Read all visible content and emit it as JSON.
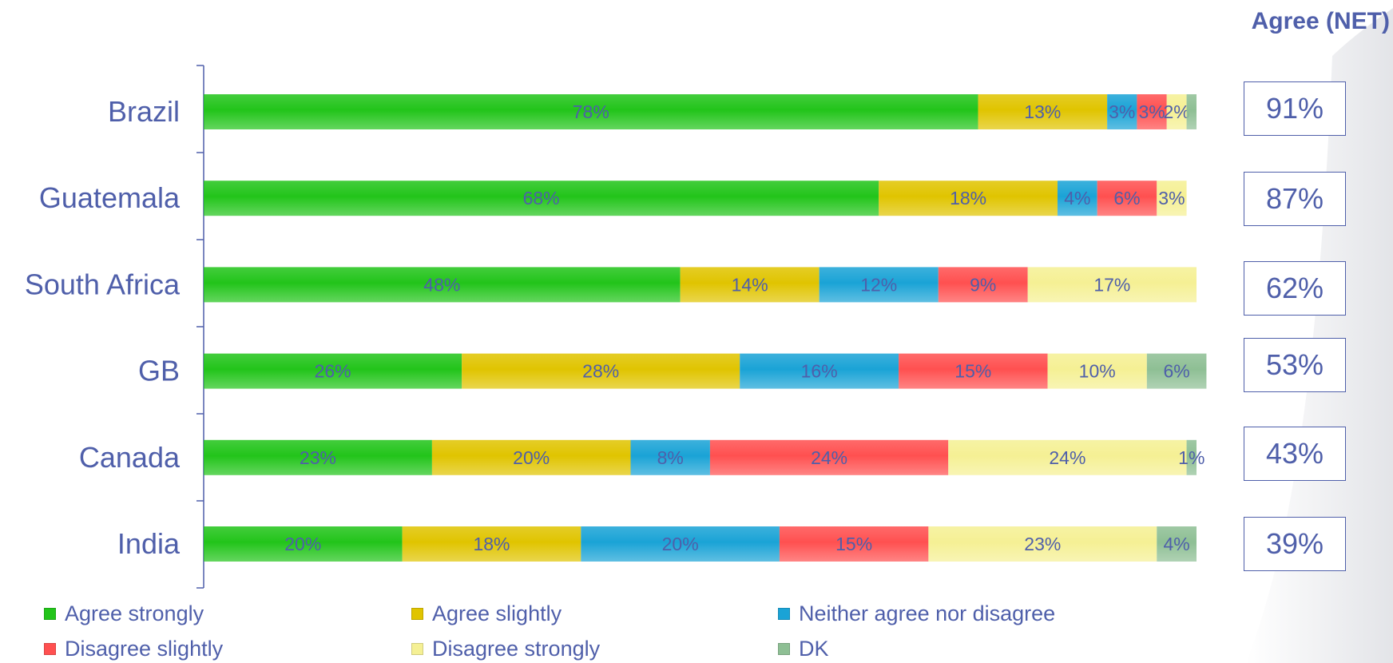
{
  "net_header": "Agree (NET)",
  "net_values": [
    "91%",
    "87%",
    "62%",
    "53%",
    "43%",
    "39%"
  ],
  "colors": {
    "text": "#4f5faa",
    "agree_strongly": "#22c41a",
    "agree_slightly": "#e0c400",
    "neither": "#1aa3d6",
    "disagree_slightly": "#ff5050",
    "disagree_strongly": "#f5f094",
    "dk": "#8ebf94"
  },
  "chart_data": {
    "type": "bar",
    "orientation": "horizontal",
    "stacked": true,
    "categories": [
      "Brazil",
      "Guatemala",
      "South Africa",
      "GB",
      "Canada",
      "India"
    ],
    "series": [
      {
        "name": "Agree strongly",
        "values": [
          78,
          68,
          48,
          26,
          23,
          20
        ],
        "labels": [
          "78%",
          "68%",
          "48%",
          "26%",
          "23%",
          "20%"
        ]
      },
      {
        "name": "Agree slightly",
        "values": [
          13,
          18,
          14,
          28,
          20,
          18
        ],
        "labels": [
          "13%",
          "18%",
          "14%",
          "28%",
          "20%",
          "18%"
        ]
      },
      {
        "name": "Neither agree nor disagree",
        "values": [
          3,
          4,
          12,
          16,
          8,
          20
        ],
        "labels": [
          "3%",
          "4%",
          "12%",
          "16%",
          "8%",
          "20%"
        ]
      },
      {
        "name": "Disagree slightly",
        "values": [
          3,
          6,
          9,
          15,
          24,
          15
        ],
        "labels": [
          "3%",
          "6%",
          "9%",
          "15%",
          "24%",
          "15%"
        ]
      },
      {
        "name": "Disagree strongly",
        "values": [
          2,
          3,
          17,
          10,
          24,
          23
        ],
        "labels": [
          "2%",
          "3%",
          "17%",
          "10%",
          "24%",
          "23%"
        ]
      },
      {
        "name": "DK",
        "values": [
          1,
          0,
          0,
          6,
          1,
          4
        ],
        "labels": [
          "",
          "",
          "",
          "6%",
          "1%",
          "4%"
        ]
      }
    ],
    "xlim": [
      0,
      100
    ],
    "grid": false,
    "legend_position": "bottom"
  }
}
